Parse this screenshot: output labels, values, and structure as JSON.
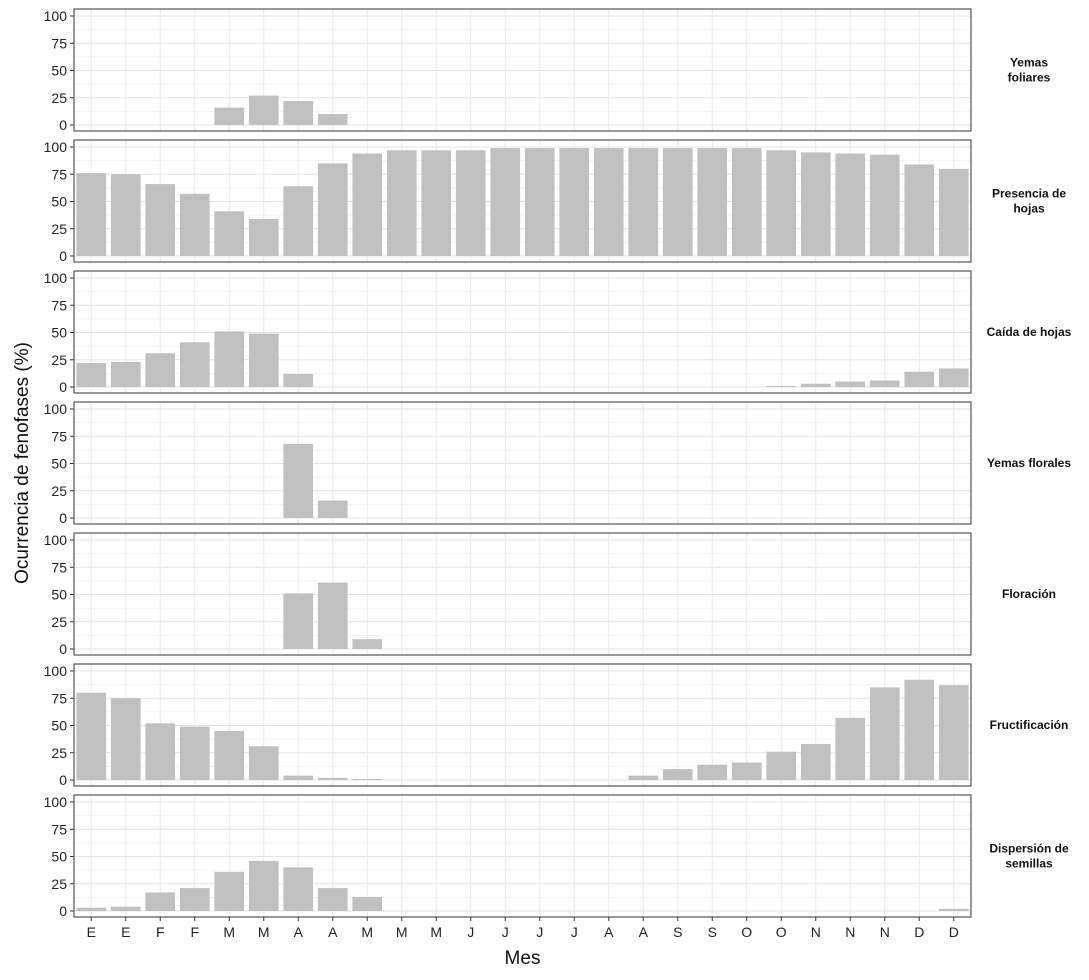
{
  "chart_data": {
    "type": "bar",
    "ylabel": "Ocurrencia de fenofases (%)",
    "xlabel": "Mes",
    "ylim": [
      0,
      100
    ],
    "yticks": [
      0,
      25,
      50,
      75,
      100
    ],
    "grid": true,
    "bar_color": "#c0c0c0",
    "categories": [
      "E",
      "E",
      "F",
      "F",
      "M",
      "M",
      "A",
      "A",
      "M",
      "M",
      "M",
      "J",
      "J",
      "J",
      "J",
      "A",
      "A",
      "S",
      "S",
      "O",
      "O",
      "N",
      "N",
      "N",
      "D",
      "D"
    ],
    "series": [
      {
        "name": "Yemas foliares",
        "label_lines": [
          "Yemas",
          "foliares"
        ],
        "values": [
          0,
          0,
          0,
          0,
          16,
          27,
          22,
          10,
          0,
          0,
          0,
          0,
          0,
          0,
          0,
          0,
          0,
          0,
          0,
          0,
          0,
          0,
          0,
          0,
          0,
          0
        ]
      },
      {
        "name": "Presencia de hojas",
        "label_lines": [
          "Presencia de",
          "hojas"
        ],
        "values": [
          76,
          75,
          66,
          57,
          41,
          34,
          64,
          85,
          94,
          97,
          97,
          97,
          99,
          99,
          99,
          99,
          99,
          99,
          99,
          99,
          97,
          95,
          94,
          93,
          84,
          80
        ]
      },
      {
        "name": "Caída de hojas",
        "label_lines": [
          "Caída de hojas"
        ],
        "values": [
          22,
          23,
          31,
          41,
          51,
          49,
          12,
          0,
          0,
          0,
          0,
          0,
          0,
          0,
          0,
          0,
          0,
          0,
          0,
          0,
          1,
          3,
          5,
          6,
          14,
          17
        ]
      },
      {
        "name": "Yemas florales",
        "label_lines": [
          "Yemas florales"
        ],
        "values": [
          0,
          0,
          0,
          0,
          0,
          0,
          68,
          16,
          0,
          0,
          0,
          0,
          0,
          0,
          0,
          0,
          0,
          0,
          0,
          0,
          0,
          0,
          0,
          0,
          0,
          0
        ]
      },
      {
        "name": "Floración",
        "label_lines": [
          "Floración"
        ],
        "values": [
          0,
          0,
          0,
          0,
          0,
          0,
          51,
          61,
          9,
          0,
          0,
          0,
          0,
          0,
          0,
          0,
          0,
          0,
          0,
          0,
          0,
          0,
          0,
          0,
          0,
          0
        ]
      },
      {
        "name": "Fructificación",
        "label_lines": [
          "Fructificación"
        ],
        "values": [
          80,
          75,
          52,
          49,
          45,
          31,
          4,
          2,
          1,
          0,
          0,
          0,
          0,
          0,
          0,
          0,
          4,
          10,
          14,
          16,
          26,
          33,
          57,
          85,
          92,
          87
        ]
      },
      {
        "name": "Dispersión de semillas",
        "label_lines": [
          "Dispersión de",
          "semillas"
        ],
        "values": [
          3,
          4,
          17,
          21,
          36,
          46,
          40,
          21,
          13,
          0,
          0,
          0,
          0,
          0,
          0,
          0,
          0,
          0,
          0,
          0,
          0,
          0,
          0,
          0,
          0,
          2
        ]
      }
    ]
  }
}
